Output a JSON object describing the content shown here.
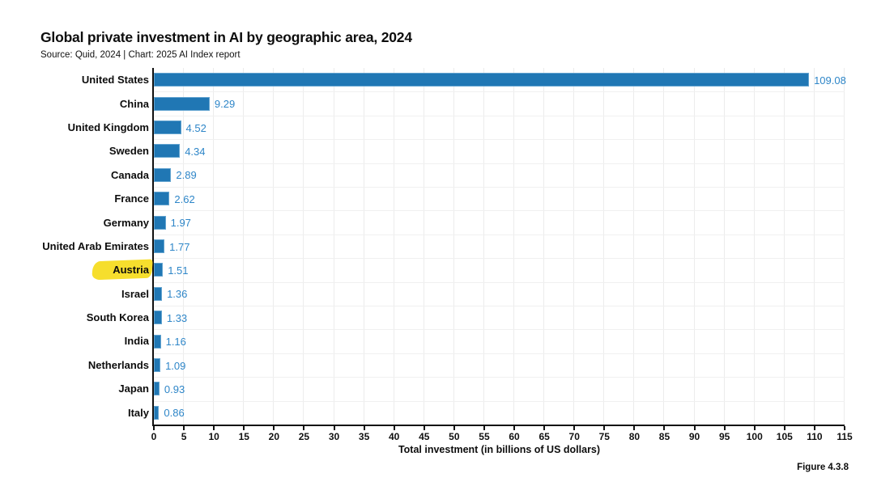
{
  "title": "Global private investment in AI by geographic area, 2024",
  "subtitle": "Source: Quid, 2024 | Chart: 2025 AI Index report",
  "figure_label": "Figure 4.3.8",
  "colors": {
    "bar_fill": "#2077B4",
    "bar_border": "#63A4D0",
    "value_label": "#2E86C8",
    "highlight": "#F6DE2D",
    "gridline": "#ECECEC",
    "axis": "#111111"
  },
  "chart_data": {
    "type": "bar",
    "orientation": "horizontal",
    "title": "Global private investment in AI by geographic area, 2024",
    "subtitle": "Source: Quid, 2024 | Chart: 2025 AI Index report",
    "categories": [
      "United States",
      "China",
      "United Kingdom",
      "Sweden",
      "Canada",
      "France",
      "Germany",
      "United Arab Emirates",
      "Austria",
      "Israel",
      "South Korea",
      "India",
      "Netherlands",
      "Japan",
      "Italy"
    ],
    "values": [
      109.08,
      9.29,
      4.52,
      4.34,
      2.89,
      2.62,
      1.97,
      1.77,
      1.51,
      1.36,
      1.33,
      1.16,
      1.09,
      0.93,
      0.86
    ],
    "value_labels": [
      "109.08",
      "9.29",
      "4.52",
      "4.34",
      "2.89",
      "2.62",
      "1.97",
      "1.77",
      "1.51",
      "1.36",
      "1.33",
      "1.16",
      "1.09",
      "0.93",
      "0.86"
    ],
    "highlighted_category": "Austria",
    "xlabel": "Total investment (in billions of US dollars)",
    "xlim": [
      0,
      115
    ],
    "xticks": [
      0,
      5,
      10,
      15,
      20,
      25,
      30,
      35,
      40,
      45,
      50,
      55,
      60,
      65,
      70,
      75,
      80,
      85,
      90,
      95,
      100,
      105,
      110,
      115
    ],
    "grid": true,
    "legend": "none"
  }
}
